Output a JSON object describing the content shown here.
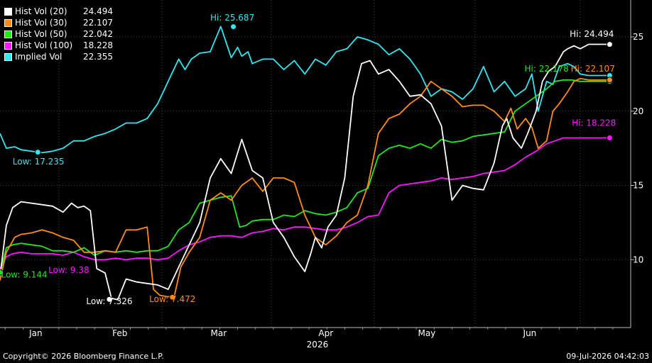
{
  "colors": {
    "hv20": "#ffffff",
    "hv30": "#ff8c1a",
    "hv50": "#22e822",
    "hv100": "#ff16ff",
    "iv": "#33e6f0"
  },
  "footer": {
    "copyright": "Copyright© 2026 Bloomberg Finance L.P.",
    "timestamp": "09-Jul-2026 04:42:03"
  },
  "chart_data": {
    "type": "line",
    "grid": true,
    "legend_position": "top-left",
    "xlabel": "2026",
    "x_tick_labels": [
      "Jan",
      "Feb",
      "Mar",
      "Apr",
      "May",
      "Jun"
    ],
    "ylim": [
      6,
      27
    ],
    "y_axis_side": "right",
    "y_ticks": [
      10,
      15,
      20,
      25
    ],
    "series": [
      {
        "key": "hv20",
        "name": "Hist Vol (20)",
        "last": "24.494",
        "hi_label": "Hi: 24.494",
        "low_label": "Low: 7.326",
        "x": [
          0.0,
          0.3,
          0.6,
          1.0,
          1.5,
          2.0,
          2.5,
          3.0,
          3.4,
          3.7,
          4.0,
          4.3,
          4.6,
          5.0,
          5.3,
          5.6,
          6.0,
          6.5,
          7.0,
          7.5,
          8.0,
          8.5,
          9.0,
          9.5,
          10.0,
          10.5,
          11.0,
          11.5,
          12.0,
          12.5,
          13.0,
          13.5,
          14.0,
          14.5,
          14.8,
          15.0,
          15.3,
          15.6,
          16.0,
          16.4,
          16.8,
          17.2,
          17.6,
          18.0,
          18.5,
          19.0,
          19.5,
          20.0,
          20.5,
          21.0,
          21.5,
          22.0,
          22.5,
          23.0,
          23.5,
          23.9,
          24.1,
          24.4,
          24.8,
          25.1,
          25.5,
          25.8,
          26.1,
          26.4,
          26.6,
          26.8,
          27.0,
          27.3,
          27.6,
          28.0,
          28.4,
          28.8,
          29.0
        ],
        "y": [
          8.9,
          12.3,
          13.5,
          13.9,
          13.8,
          13.7,
          13.6,
          13.2,
          13.8,
          13.5,
          13.6,
          13.3,
          9.4,
          9.1,
          7.4,
          7.3,
          8.7,
          8.5,
          8.4,
          8.3,
          8.0,
          9.5,
          11.0,
          12.5,
          15.5,
          16.8,
          15.8,
          18.1,
          16.0,
          15.5,
          12.5,
          11.5,
          10.2,
          9.2,
          10.5,
          11.5,
          10.8,
          12.2,
          13.0,
          15.5,
          21.0,
          23.2,
          23.4,
          22.5,
          22.8,
          22.0,
          21.0,
          21.1,
          20.5,
          19.0,
          14.0,
          15.0,
          14.8,
          14.7,
          16.5,
          19.0,
          19.5,
          18.2,
          17.5,
          18.5,
          20.0,
          22.0,
          22.7,
          23.0,
          23.5,
          24.0,
          24.2,
          24.4,
          24.2,
          24.5,
          24.5,
          24.5,
          24.5
        ]
      },
      {
        "key": "hv30",
        "name": "Hist Vol (30)",
        "last": "22.107",
        "hi_label": "Hi: 22.107",
        "low_label": "Low: 7.472",
        "x": [
          0.0,
          0.3,
          0.7,
          1.0,
          1.5,
          2.0,
          2.5,
          3.0,
          3.5,
          4.0,
          4.5,
          5.0,
          5.5,
          6.0,
          6.5,
          7.0,
          7.3,
          7.6,
          8.0,
          8.3,
          8.6,
          9.0,
          9.5,
          10.0,
          10.5,
          11.0,
          11.5,
          12.0,
          12.5,
          13.0,
          13.5,
          14.0,
          14.5,
          15.0,
          15.5,
          16.0,
          16.5,
          17.0,
          17.5,
          18.0,
          18.5,
          19.0,
          19.5,
          20.0,
          20.5,
          21.0,
          21.5,
          22.0,
          22.5,
          23.0,
          23.5,
          24.0,
          24.3,
          24.6,
          25.0,
          25.3,
          25.6,
          26.0,
          26.3,
          26.6,
          27.0,
          27.3,
          27.6,
          28.0,
          28.4,
          28.8,
          29.0
        ],
        "y": [
          8.6,
          10.5,
          11.5,
          11.7,
          11.8,
          12.0,
          11.8,
          11.5,
          11.3,
          10.5,
          10.5,
          10.6,
          10.5,
          12.0,
          12.0,
          12.2,
          8.0,
          7.6,
          7.5,
          7.6,
          9.5,
          10.5,
          11.5,
          14.0,
          14.5,
          14.0,
          15.0,
          15.5,
          14.6,
          15.5,
          15.5,
          15.2,
          13.0,
          11.5,
          11.0,
          11.6,
          12.5,
          13.0,
          15.0,
          18.5,
          19.5,
          19.8,
          20.5,
          21.0,
          22.0,
          21.5,
          21.0,
          20.3,
          20.4,
          20.4,
          20.0,
          19.3,
          20.2,
          18.8,
          19.5,
          18.9,
          17.5,
          18.0,
          20.0,
          20.5,
          21.3,
          22.0,
          22.2,
          22.1,
          22.1,
          22.1,
          22.1
        ]
      },
      {
        "key": "hv50",
        "name": "Hist Vol (50)",
        "last": "22.042",
        "hi_label": "Hi: 22.178",
        "low_label": "Low: 9.144",
        "x": [
          0.0,
          0.3,
          0.6,
          1.0,
          1.5,
          2.0,
          2.5,
          3.0,
          3.5,
          4.0,
          4.5,
          5.0,
          5.5,
          6.0,
          6.5,
          7.0,
          7.5,
          8.0,
          8.5,
          9.0,
          9.5,
          10.0,
          10.5,
          11.0,
          11.4,
          11.7,
          12.0,
          12.5,
          13.0,
          13.5,
          14.0,
          14.5,
          15.0,
          15.5,
          16.0,
          16.5,
          17.0,
          17.5,
          18.0,
          18.5,
          19.0,
          19.5,
          20.0,
          20.5,
          21.0,
          21.5,
          22.0,
          22.5,
          23.0,
          23.5,
          24.0,
          24.5,
          25.0,
          25.5,
          26.0,
          26.4,
          26.8,
          27.2,
          27.6,
          28.0,
          28.4,
          28.8,
          29.0
        ],
        "y": [
          9.1,
          10.8,
          11.0,
          11.1,
          11.0,
          10.9,
          10.6,
          10.6,
          10.5,
          10.8,
          10.3,
          10.6,
          10.5,
          10.6,
          10.5,
          10.6,
          10.6,
          10.9,
          12.0,
          12.5,
          13.8,
          14.0,
          14.2,
          14.3,
          12.2,
          12.3,
          12.6,
          12.7,
          12.7,
          13.0,
          12.9,
          13.3,
          13.1,
          13.0,
          13.2,
          13.5,
          14.5,
          14.8,
          17.0,
          17.5,
          17.7,
          17.5,
          17.8,
          17.5,
          18.1,
          17.9,
          18.0,
          18.3,
          18.4,
          18.5,
          18.6,
          20.0,
          20.5,
          21.0,
          21.5,
          22.0,
          22.1,
          22.1,
          22.0,
          22.0,
          22.0,
          22.0,
          22.0
        ]
      },
      {
        "key": "hv100",
        "name": "Hist Vol (100)",
        "last": "18.228",
        "hi_label": "Hi: 18.228",
        "low_label": "Low: 9.38",
        "x": [
          0.0,
          0.3,
          0.6,
          1.0,
          1.5,
          2.0,
          2.5,
          3.0,
          3.5,
          4.0,
          4.5,
          5.0,
          5.5,
          6.0,
          6.5,
          7.0,
          7.5,
          8.0,
          8.5,
          9.0,
          9.5,
          10.0,
          10.5,
          11.0,
          11.5,
          12.0,
          12.5,
          13.0,
          13.5,
          14.0,
          14.5,
          15.0,
          15.5,
          16.0,
          16.5,
          17.0,
          17.5,
          18.0,
          18.5,
          19.0,
          19.5,
          20.0,
          20.5,
          21.0,
          21.5,
          22.0,
          22.5,
          23.0,
          23.5,
          24.0,
          24.5,
          25.0,
          25.5,
          26.0,
          26.4,
          26.8,
          27.2,
          27.6,
          28.0,
          28.4,
          28.8,
          29.0
        ],
        "y": [
          9.4,
          10.2,
          10.4,
          10.5,
          10.4,
          10.4,
          10.4,
          10.3,
          10.5,
          10.2,
          10.0,
          10.0,
          10.1,
          10.0,
          10.1,
          10.1,
          10.0,
          10.1,
          10.6,
          11.0,
          11.2,
          11.5,
          11.6,
          11.6,
          11.5,
          11.8,
          11.9,
          12.1,
          12.0,
          12.2,
          12.2,
          12.1,
          12.0,
          12.0,
          12.2,
          12.5,
          12.9,
          13.0,
          14.5,
          15.0,
          15.1,
          15.2,
          15.3,
          15.5,
          15.4,
          15.5,
          15.6,
          15.8,
          15.9,
          16.0,
          16.4,
          16.9,
          17.3,
          17.8,
          18.0,
          18.2,
          18.2,
          18.2,
          18.2,
          18.2,
          18.2,
          18.2
        ]
      },
      {
        "key": "iv",
        "name": "Implied Vol",
        "last": "22.355",
        "hi_label": "Hi: 25.687",
        "low_label": "Low: 17.235",
        "x": [
          0.0,
          0.3,
          0.7,
          1.0,
          1.5,
          2.0,
          2.5,
          3.0,
          3.5,
          4.0,
          4.5,
          5.0,
          5.5,
          6.0,
          6.5,
          7.0,
          7.5,
          8.0,
          8.5,
          8.8,
          9.1,
          9.5,
          10.0,
          10.5,
          11.0,
          11.3,
          11.5,
          11.8,
          12.0,
          12.5,
          13.0,
          13.5,
          14.0,
          14.5,
          15.0,
          15.5,
          16.0,
          16.5,
          17.0,
          17.5,
          18.0,
          18.5,
          19.0,
          19.5,
          20.0,
          20.5,
          21.0,
          21.5,
          22.0,
          22.5,
          23.0,
          23.5,
          24.0,
          24.5,
          25.0,
          25.3,
          25.6,
          26.0,
          26.3,
          26.6,
          27.0,
          27.3,
          27.6,
          28.0,
          28.4,
          28.8,
          29.0
        ],
        "y": [
          18.5,
          17.5,
          17.6,
          17.4,
          17.3,
          17.2,
          17.3,
          17.5,
          18.0,
          18.0,
          18.3,
          18.5,
          18.8,
          19.2,
          19.2,
          19.5,
          20.5,
          22.0,
          23.5,
          22.8,
          23.5,
          23.9,
          24.0,
          25.7,
          23.6,
          24.3,
          23.7,
          24.0,
          23.2,
          23.5,
          23.5,
          22.8,
          23.4,
          22.5,
          23.5,
          23.1,
          24.0,
          24.2,
          25.0,
          24.8,
          24.5,
          23.8,
          24.2,
          23.5,
          22.5,
          21.0,
          21.5,
          21.3,
          20.8,
          21.5,
          23.0,
          21.3,
          22.0,
          21.0,
          21.5,
          22.5,
          20.0,
          22.0,
          21.8,
          23.0,
          23.2,
          23.0,
          22.5,
          22.4,
          22.4,
          22.4,
          22.4
        ]
      }
    ]
  }
}
